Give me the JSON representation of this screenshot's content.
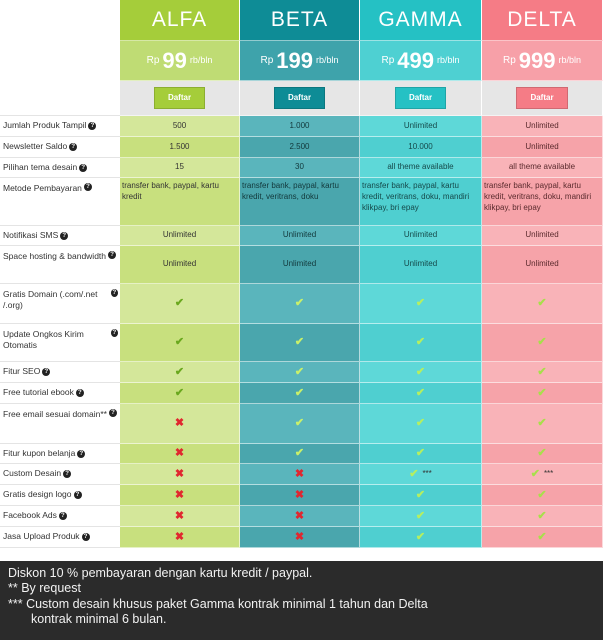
{
  "plans": [
    {
      "id": "alfa",
      "name": "ALFA",
      "currency": "Rp",
      "price": "99",
      "unit": "rb/bln",
      "button": "Daftar"
    },
    {
      "id": "beta",
      "name": "BETA",
      "currency": "Rp",
      "price": "199",
      "unit": "rb/bln",
      "button": "Daftar"
    },
    {
      "id": "gamma",
      "name": "GAMMA",
      "currency": "Rp",
      "price": "499",
      "unit": "rb/bln",
      "button": "Daftar"
    },
    {
      "id": "delta",
      "name": "DELTA",
      "currency": "Rp",
      "price": "999",
      "unit": "rb/bln",
      "button": "Daftar"
    }
  ],
  "features": [
    {
      "label": "Jumlah Produk Tampil",
      "values": [
        "500",
        "1.000",
        "Unlimited",
        "Unlimited"
      ]
    },
    {
      "label": "Newsletter Saldo",
      "values": [
        "1.500",
        "2.500",
        "10.000",
        "Unlimited"
      ]
    },
    {
      "label": "Pilihan tema desain",
      "values": [
        "15",
        "30",
        "all theme available",
        "all theme available"
      ]
    },
    {
      "label": "Metode Pembayaran",
      "values": [
        "transfer bank, paypal, kartu kredit",
        "transfer bank, paypal, kartu kredit, veritrans, doku",
        "transfer bank, paypal, kartu kredit, veritrans, doku, mandiri klikpay, bri epay",
        "transfer bank, paypal, kartu kredit, veritrans, doku, mandiri klikpay, bri epay"
      ]
    },
    {
      "label": "Notifikasi SMS",
      "values": [
        "Unlimited",
        "Unlimited",
        "Unlimited",
        "Unlimited"
      ]
    },
    {
      "label": "Space hosting & bandwidth",
      "values": [
        "Unlimited",
        "Unlimited",
        "Unlimited",
        "Unlimited"
      ]
    },
    {
      "label": "Gratis Domain (.com/.net /.org)",
      "values": [
        "check",
        "check",
        "check",
        "check"
      ]
    },
    {
      "label": "Update Ongkos Kirim Otomatis",
      "values": [
        "check",
        "check",
        "check",
        "check"
      ]
    },
    {
      "label": "Fitur SEO",
      "values": [
        "check",
        "check",
        "check",
        "check"
      ]
    },
    {
      "label": "Free tutorial ebook",
      "values": [
        "check",
        "check",
        "check",
        "check"
      ]
    },
    {
      "label": "Free email sesuai domain**",
      "values": [
        "cross",
        "check",
        "check",
        "check"
      ]
    },
    {
      "label": "Fitur kupon belanja",
      "values": [
        "cross",
        "check",
        "check",
        "check"
      ]
    },
    {
      "label": "Custom Desain",
      "values": [
        "cross",
        "cross",
        "check",
        "check"
      ],
      "suffix": [
        "",
        "",
        "***",
        "***"
      ]
    },
    {
      "label": "Gratis design logo",
      "values": [
        "cross",
        "cross",
        "check",
        "check"
      ]
    },
    {
      "label": "Facebook Ads",
      "values": [
        "cross",
        "cross",
        "check",
        "check"
      ]
    },
    {
      "label": "Jasa Upload Produk",
      "values": [
        "cross",
        "cross",
        "check",
        "check"
      ]
    }
  ],
  "footer": {
    "line1": "Diskon 10 % pembayaran dengan kartu kredit / paypal.",
    "line2": "** By request",
    "line3": "*** Custom desain khusus paket Gamma kontrak minimal 1 tahun dan Delta",
    "line4": "kontrak minimal 6 bulan."
  },
  "icons": {
    "help": "question-circle-icon",
    "check": "check-icon",
    "cross": "cross-icon"
  },
  "colors": {
    "alfa": "#a5cd3a",
    "beta": "#0e8c96",
    "gamma": "#25c1c4",
    "delta": "#f57c86"
  }
}
